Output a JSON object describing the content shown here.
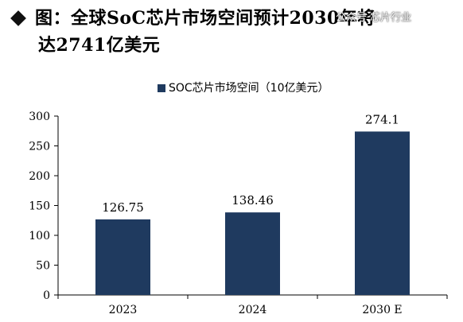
{
  "heading": {
    "line1": "图：全球SoC芯片市场空间预计2030年将",
    "line2": "达2741亿美元"
  },
  "watermark": "公众号·芯片行业",
  "colors": {
    "bar": "#1f3a5f",
    "axis": "#000000"
  },
  "chart_data": {
    "type": "bar",
    "categories": [
      "2023",
      "2024",
      "2030 E"
    ],
    "series": [
      {
        "name": "SOC芯片市场空间（10亿美元）",
        "values": [
          126.75,
          138.46,
          274.1
        ],
        "labels": [
          "126.75",
          "138.46",
          "274.1"
        ]
      }
    ],
    "yticks": [
      0,
      50,
      100,
      150,
      200,
      250,
      300
    ],
    "ylim": [
      0,
      300
    ],
    "legend": "top-center",
    "grid": false
  }
}
